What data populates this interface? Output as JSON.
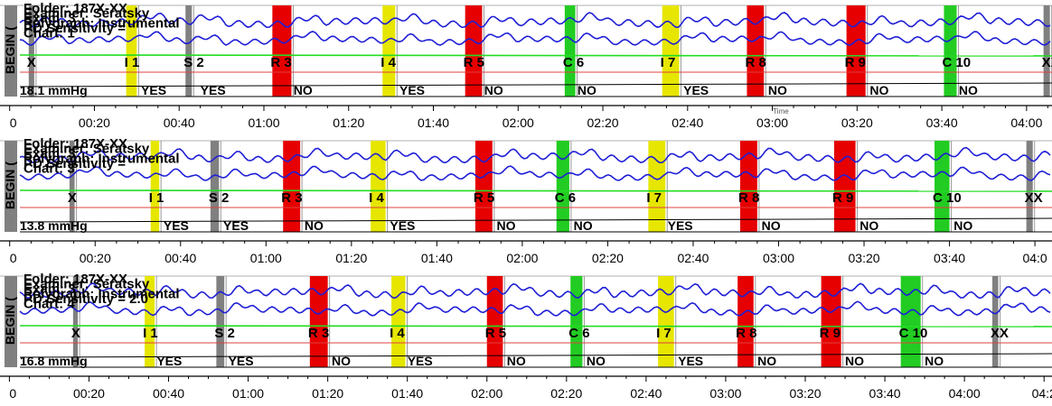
{
  "colors": {
    "trace": "#1f1fd6",
    "baseline": "#22dd22",
    "red_line": "#e04040",
    "black_trace": "#000000",
    "marker_gray": "#808080",
    "marker_yellow": "#e6e600",
    "marker_red": "#e60000",
    "marker_green": "#22cc22"
  },
  "chart_data": [
    {
      "type": "line",
      "panel": 1,
      "xlabel": "Time",
      "x_ticks": [
        "0",
        "00:20",
        "00:40",
        "01:00",
        "01:20",
        "01:40",
        "02:00",
        "02:20",
        "02:40",
        "03:00",
        "03:20",
        "03:40",
        "04:00"
      ],
      "x_tick_seconds": [
        0,
        20,
        40,
        60,
        80,
        100,
        120,
        140,
        160,
        180,
        200,
        220,
        240
      ],
      "xlim_seconds": [
        -1,
        246
      ],
      "begin_label": "BEGIN (",
      "info_lines": [
        "Folder: 187X-XX",
        "Examiner: Seratsky",
        "Exam: 3",
        "Polygraph: Instrumental",
        "PD Sensitivity =",
        "Chart: 1"
      ],
      "pressure_label": "18.1 mmHg",
      "markers": [
        {
          "label": "X",
          "color": "gray",
          "start": 4.5,
          "end": 5.8
        },
        {
          "label": "I 1",
          "color": "yellow",
          "start": 27.5,
          "end": 30
        },
        {
          "label": "S 2",
          "color": "gray",
          "start": 41.5,
          "end": 43
        },
        {
          "label": "R 3",
          "color": "red",
          "start": 62,
          "end": 66.5
        },
        {
          "label": "I 4",
          "color": "yellow",
          "start": 88,
          "end": 91
        },
        {
          "label": "R 5",
          "color": "red",
          "start": 107.5,
          "end": 111.5
        },
        {
          "label": "C 6",
          "color": "green",
          "start": 131,
          "end": 133.5
        },
        {
          "label": "I 7",
          "color": "yellow",
          "start": 154,
          "end": 158
        },
        {
          "label": "R 8",
          "color": "red",
          "start": 174,
          "end": 178
        },
        {
          "label": "R 9",
          "color": "red",
          "start": 197.5,
          "end": 202
        },
        {
          "label": "C 10",
          "color": "green",
          "start": 220.5,
          "end": 223.5
        },
        {
          "label": "XX",
          "color": "gray",
          "start": 244,
          "end": 245.5
        }
      ],
      "answers": [
        {
          "label": "YES",
          "t": 31
        },
        {
          "label": "YES",
          "t": 45
        },
        {
          "label": "NO",
          "t": 67
        },
        {
          "label": "YES",
          "t": 92
        },
        {
          "label": "NO",
          "t": 112
        },
        {
          "label": "NO",
          "t": 134
        },
        {
          "label": "YES",
          "t": 159
        },
        {
          "label": "NO",
          "t": 179
        },
        {
          "label": "NO",
          "t": 203
        },
        {
          "label": "NO",
          "t": 224
        }
      ]
    },
    {
      "type": "line",
      "panel": 2,
      "x_ticks": [
        "0",
        "00:20",
        "00:40",
        "01:00",
        "01:20",
        "01:40",
        "02:00",
        "02:20",
        "02:40",
        "03:00",
        "03:20",
        "03:40",
        "04:0"
      ],
      "x_tick_seconds": [
        0,
        20,
        40,
        60,
        80,
        100,
        120,
        140,
        160,
        180,
        200,
        220,
        240
      ],
      "xlim_seconds": [
        -1,
        244
      ],
      "begin_label": "BEGIN (",
      "info_lines": [
        "Folder: 187X-XX",
        "Examiner: Seratsky",
        "Exam: 3",
        "Polygraph: Instrumental",
        "PD Sensitivity =",
        "Chart: 3"
      ],
      "pressure_label": "13.8 mmHg",
      "markers": [
        {
          "label": "X",
          "color": "gray",
          "start": 14,
          "end": 15.2
        },
        {
          "label": "I 1",
          "color": "yellow",
          "start": 33,
          "end": 35
        },
        {
          "label": "S 2",
          "color": "gray",
          "start": 47,
          "end": 49
        },
        {
          "label": "R 3",
          "color": "red",
          "start": 64,
          "end": 68
        },
        {
          "label": "I 4",
          "color": "yellow",
          "start": 84.5,
          "end": 88
        },
        {
          "label": "R 5",
          "color": "red",
          "start": 109,
          "end": 113
        },
        {
          "label": "C 6",
          "color": "green",
          "start": 128,
          "end": 131
        },
        {
          "label": "I 7",
          "color": "yellow",
          "start": 149.5,
          "end": 153.5
        },
        {
          "label": "R 8",
          "color": "red",
          "start": 171,
          "end": 175
        },
        {
          "label": "R 9",
          "color": "red",
          "start": 193,
          "end": 198
        },
        {
          "label": "C 10",
          "color": "green",
          "start": 216.5,
          "end": 220
        },
        {
          "label": "XX",
          "color": "gray",
          "start": 238,
          "end": 239.5
        }
      ],
      "answers": [
        {
          "label": "YES",
          "t": 36
        },
        {
          "label": "YES",
          "t": 50
        },
        {
          "label": "NO",
          "t": 69
        },
        {
          "label": "YES",
          "t": 89
        },
        {
          "label": "NO",
          "t": 114
        },
        {
          "label": "NO",
          "t": 132
        },
        {
          "label": "YES",
          "t": 154
        },
        {
          "label": "NO",
          "t": 176
        },
        {
          "label": "NO",
          "t": 199
        },
        {
          "label": "NO",
          "t": 221
        }
      ]
    },
    {
      "type": "line",
      "panel": 3,
      "x_ticks": [
        "0",
        "00:20",
        "00:40",
        "01:00",
        "01:20",
        "01:40",
        "02:00",
        "02:20",
        "02:40",
        "03:00",
        "03:20",
        "03:40",
        "04:00",
        "04:2"
      ],
      "x_tick_seconds": [
        0,
        20,
        40,
        60,
        80,
        100,
        120,
        140,
        160,
        180,
        200,
        220,
        240,
        260
      ],
      "xlim_seconds": [
        -1,
        262
      ],
      "begin_label": "BEGIN (",
      "info_lines": [
        "Folder: 187X-XX",
        "Examiner: Seratsky",
        "Exam: 3",
        "Polygraph: Instrumental",
        "PD Sensitivity = 2.0",
        "Chart: 4"
      ],
      "pressure_label": "16.8 mmHg",
      "markers": [
        {
          "label": "X",
          "color": "gray",
          "start": 16,
          "end": 17.2
        },
        {
          "label": "I 1",
          "color": "yellow",
          "start": 34,
          "end": 36.5
        },
        {
          "label": "S 2",
          "color": "gray",
          "start": 52,
          "end": 54
        },
        {
          "label": "R 3",
          "color": "red",
          "start": 75.5,
          "end": 80
        },
        {
          "label": "I 4",
          "color": "yellow",
          "start": 96,
          "end": 99.5
        },
        {
          "label": "R 5",
          "color": "red",
          "start": 120,
          "end": 124
        },
        {
          "label": "C 6",
          "color": "green",
          "start": 141,
          "end": 144
        },
        {
          "label": "I 7",
          "color": "yellow",
          "start": 163,
          "end": 167
        },
        {
          "label": "R 8",
          "color": "red",
          "start": 183,
          "end": 187
        },
        {
          "label": "R 9",
          "color": "red",
          "start": 204,
          "end": 209
        },
        {
          "label": "C 10",
          "color": "green",
          "start": 224,
          "end": 229
        },
        {
          "label": "XX",
          "color": "gray",
          "start": 247,
          "end": 248.5
        }
      ],
      "answers": [
        {
          "label": "YES",
          "t": 37
        },
        {
          "label": "YES",
          "t": 55
        },
        {
          "label": "NO",
          "t": 81
        },
        {
          "label": "YES",
          "t": 100
        },
        {
          "label": "NO",
          "t": 125
        },
        {
          "label": "NO",
          "t": 145
        },
        {
          "label": "YES",
          "t": 168
        },
        {
          "label": "NO",
          "t": 188
        },
        {
          "label": "NO",
          "t": 210
        },
        {
          "label": "NO",
          "t": 230
        }
      ]
    }
  ]
}
